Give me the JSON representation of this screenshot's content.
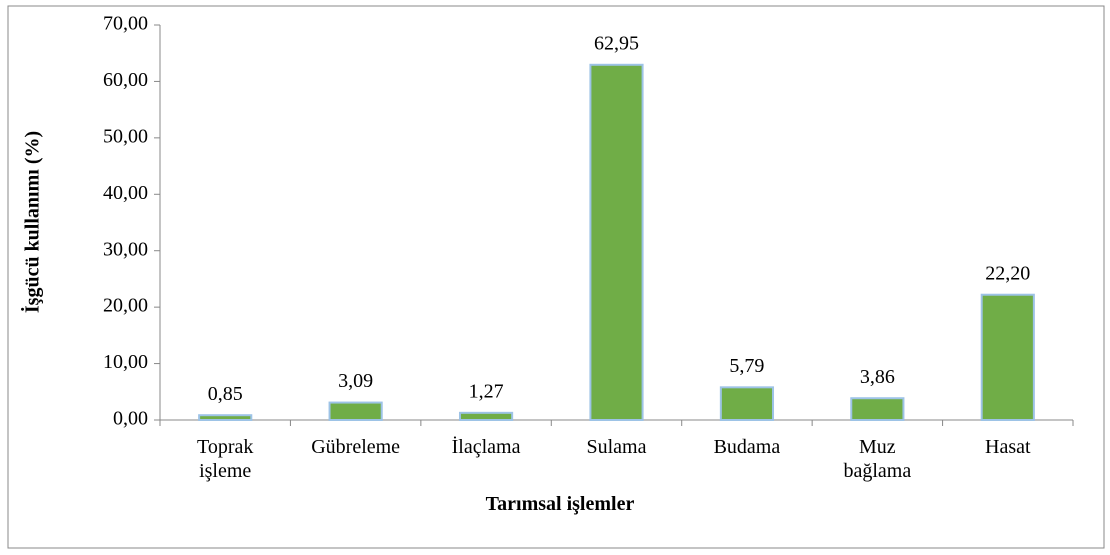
{
  "chart_data": {
    "type": "bar",
    "x_label": "Tarımsal işlemler",
    "y_label": "İşgücü kullanımı (%)",
    "categories": [
      "Toprak işleme",
      "Gübreleme",
      "İlaçlama",
      "Sulama",
      "Budama",
      "Muz bağlama",
      "Hasat"
    ],
    "values": [
      0.85,
      3.09,
      1.27,
      62.95,
      5.79,
      3.86,
      22.2
    ],
    "value_labels": [
      "0,85",
      "3,09",
      "1,27",
      "62,95",
      "5,79",
      "3,86",
      "22,20"
    ],
    "color": "#70ad47",
    "edge_color": "#9dc3e6",
    "ylim": [
      0,
      70
    ],
    "yticks": [
      {
        "value": 0,
        "label": "0,00"
      },
      {
        "value": 10,
        "label": "10,00"
      },
      {
        "value": 20,
        "label": "20,00"
      },
      {
        "value": 30,
        "label": "30,00"
      },
      {
        "value": 40,
        "label": "40,00"
      },
      {
        "value": 50,
        "label": "50,00"
      },
      {
        "value": 60,
        "label": "60,00"
      },
      {
        "value": 70,
        "label": "70,00"
      }
    ],
    "grid": false
  }
}
